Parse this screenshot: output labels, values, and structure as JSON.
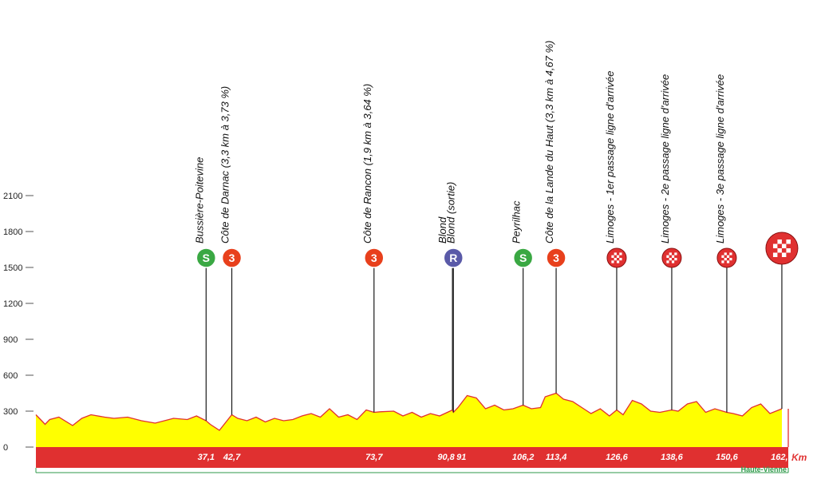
{
  "chart_data": {
    "type": "area",
    "ylim": [
      0,
      2100
    ],
    "yticks": [
      0,
      300,
      600,
      900,
      1200,
      1500,
      1800,
      2100
    ],
    "xlim": [
      0,
      164
    ],
    "x_unit": "Km",
    "region": "Haute-Vienne",
    "colors": {
      "fill": "#ffff00",
      "line": "#e03030",
      "band": "#e03030",
      "sprint": "#3aa843",
      "climb": "#e8401c",
      "feed": "#5a5aa8",
      "finish": "#e03030",
      "region_line": "#2e9a4a"
    },
    "profile": {
      "x": [
        0,
        1,
        2,
        3,
        5,
        8,
        10,
        12,
        15,
        17,
        20,
        23,
        26,
        30,
        33,
        35,
        37.1,
        38,
        40,
        42.7,
        44,
        46,
        48,
        50,
        52,
        54,
        56,
        58,
        60,
        62,
        64,
        66,
        68,
        70,
        72,
        73.7,
        75,
        78,
        80,
        82,
        84,
        86,
        88,
        90.8,
        91,
        92,
        94,
        96,
        98,
        100,
        102,
        104,
        106.2,
        108,
        110,
        111,
        113.4,
        115,
        117,
        119,
        121,
        123,
        125,
        126.6,
        128,
        130,
        132,
        134,
        136,
        138.6,
        140,
        142,
        144,
        146,
        148,
        150.6,
        152,
        154,
        156,
        158,
        160,
        162.6
      ],
      "y": [
        270,
        230,
        190,
        230,
        250,
        180,
        240,
        270,
        250,
        240,
        250,
        220,
        200,
        240,
        230,
        260,
        220,
        190,
        140,
        270,
        240,
        220,
        250,
        210,
        240,
        220,
        230,
        260,
        280,
        250,
        320,
        250,
        270,
        230,
        310,
        290,
        295,
        300,
        260,
        290,
        250,
        280,
        260,
        310,
        290,
        330,
        430,
        410,
        320,
        350,
        310,
        320,
        350,
        320,
        330,
        420,
        450,
        400,
        380,
        330,
        280,
        320,
        260,
        310,
        270,
        390,
        360,
        300,
        290,
        310,
        300,
        360,
        380,
        290,
        320,
        290,
        280,
        260,
        330,
        360,
        280,
        320
      ]
    },
    "km_labels": [
      "37,1",
      "42,7",
      "73,7",
      "90,8",
      "91",
      "106,2",
      "113,4",
      "126,6",
      "138,6",
      "150,6",
      "162,6"
    ],
    "waypoints": [
      {
        "name": "Bussière-Poitevine",
        "km": 37.1,
        "type": "sprint",
        "badge": "S",
        "badge_alt": 1580
      },
      {
        "name": "Côte de Darnac (3,3 km à 3,73 %)",
        "km": 42.7,
        "type": "climb",
        "badge": "3",
        "badge_alt": 1580
      },
      {
        "name": "Côte de Rancon (1,9 km à 3,64 %)",
        "km": 73.7,
        "type": "climb",
        "badge": "3",
        "badge_alt": 1580
      },
      {
        "name": "Blond",
        "km": 90.8,
        "type": "sprint",
        "badge": "S",
        "badge_alt": 1580
      },
      {
        "name": "Blond (sortie)",
        "km": 91.0,
        "type": "feed",
        "badge": "R",
        "badge_alt": 1580
      },
      {
        "name": "Peyrilhac",
        "km": 106.2,
        "type": "sprint",
        "badge": "S",
        "badge_alt": 1580
      },
      {
        "name": "Côte de la Lande du Haut (3,3 km à 4,67 %)",
        "km": 113.4,
        "type": "climb",
        "badge": "3",
        "badge_alt": 1580
      },
      {
        "name": "Limoges - 1er passage ligne d'arrivée",
        "km": 126.6,
        "type": "lap",
        "badge": "",
        "badge_alt": 1580
      },
      {
        "name": "Limoges - 2e passage ligne d'arrivée",
        "km": 138.6,
        "type": "lap",
        "badge": "",
        "badge_alt": 1580
      },
      {
        "name": "Limoges - 3e passage ligne d'arrivée",
        "km": 150.6,
        "type": "lap",
        "badge": "",
        "badge_alt": 1580
      },
      {
        "name": "",
        "km": 162.6,
        "type": "finish",
        "badge": "",
        "badge_alt": 1660
      }
    ]
  }
}
